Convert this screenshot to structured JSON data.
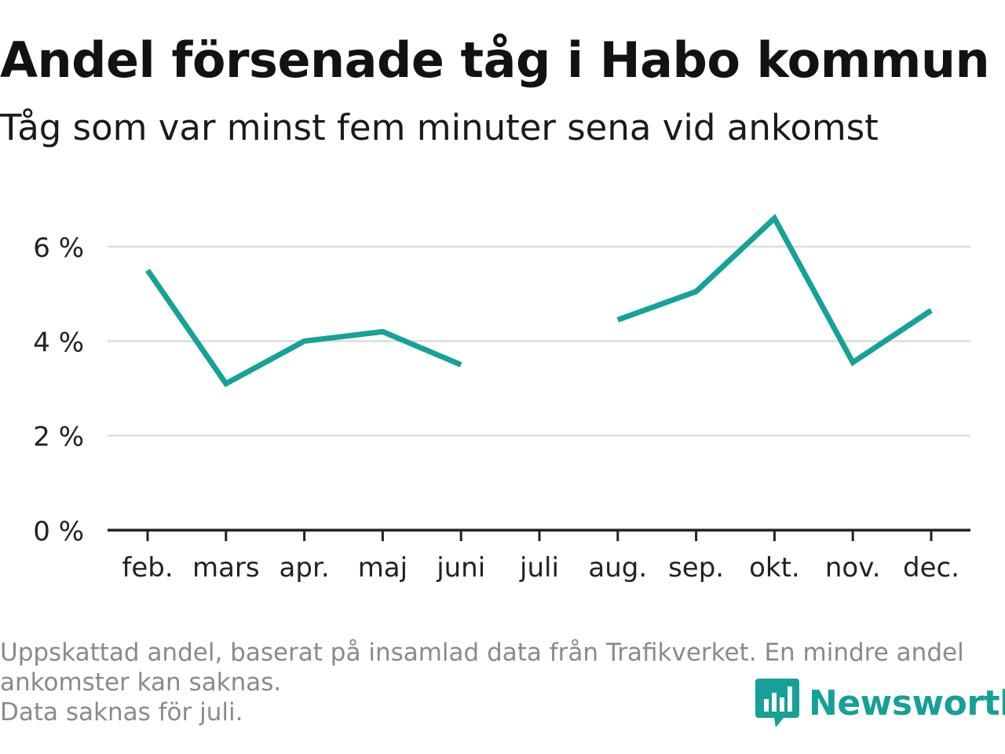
{
  "title": "Andel försenade tåg i Habo kommun",
  "subtitle": "Tåg som var minst fem minuter sena vid ankomst",
  "footnote": {
    "line1": "Uppskattad andel, baserat på insamlad data från Trafikverket. En mindre andel",
    "line2": "ankomster kan saknas.",
    "line3": "Data saknas för juli."
  },
  "brand": {
    "name": "Newsworthy",
    "icon": "newsworthy-logo-icon",
    "color": "#16a097"
  },
  "colors": {
    "line": "#14a396",
    "grid": "#dcdcdc",
    "axis": "#222222",
    "tick_label": "#222222"
  },
  "chart_data": {
    "type": "line",
    "categories": [
      "feb.",
      "mars",
      "apr.",
      "maj",
      "juni",
      "juli",
      "aug.",
      "sep.",
      "okt.",
      "nov.",
      "dec."
    ],
    "series": [
      {
        "values": [
          5.5,
          3.1,
          4.0,
          4.2,
          3.5,
          null,
          4.45,
          5.05,
          6.6,
          3.55,
          4.65
        ]
      }
    ],
    "ylim": [
      0,
      7
    ],
    "yticks": [
      0,
      2,
      4,
      6
    ],
    "ytick_labels": [
      "0 %",
      "2 %",
      "4 %",
      "6 %"
    ],
    "grid": true,
    "legend": "none"
  }
}
